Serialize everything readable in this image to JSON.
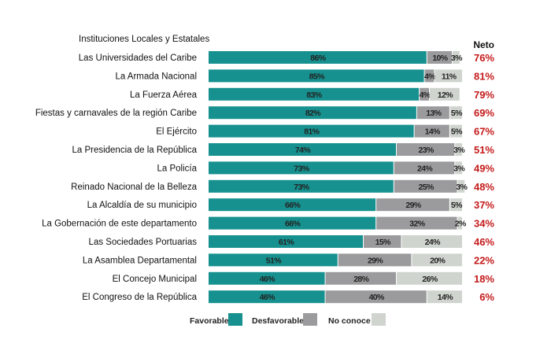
{
  "chart_data": {
    "type": "bar",
    "orientation": "horizontal",
    "stacked": true,
    "title": "Instituciones Locales y Estatales",
    "extra_column_header": "Neto",
    "categories": [
      "Las Universidades del Caribe",
      "La Armada Nacional",
      "La Fuerza Aérea",
      "Fiestas y carnavales de la región Caribe",
      "El Ejército",
      "La Presidencia de la República",
      "La Policía",
      "Reinado Nacional de la Belleza",
      "La Alcaldía de su municipio",
      "La Gobernación de este departamento",
      "Las Sociedades Portuarias",
      "La Asamblea Departamental",
      "El Concejo Municipal",
      "El Congreso de la República"
    ],
    "series": [
      {
        "name": "Favorable",
        "color": "#16918f",
        "values": [
          86,
          85,
          83,
          82,
          81,
          74,
          73,
          73,
          66,
          66,
          61,
          51,
          46,
          46
        ]
      },
      {
        "name": "Desfavorable",
        "color": "#9b9b9d",
        "values": [
          10,
          4,
          4,
          13,
          14,
          23,
          24,
          25,
          29,
          32,
          15,
          29,
          28,
          40
        ]
      },
      {
        "name": "No conoce",
        "color": "#cfd4cf",
        "values": [
          3,
          11,
          12,
          5,
          5,
          3,
          3,
          3,
          5,
          2,
          24,
          20,
          26,
          14
        ]
      }
    ],
    "neto": [
      "76%",
      "81%",
      "79%",
      "69%",
      "67%",
      "51%",
      "49%",
      "48%",
      "37%",
      "34%",
      "46%",
      "22%",
      "18%",
      "6%"
    ],
    "value_suffix": "%",
    "xlim": [
      0,
      100
    ],
    "grid": false,
    "legend": "bottom",
    "neto_color": "#c41a1a"
  }
}
